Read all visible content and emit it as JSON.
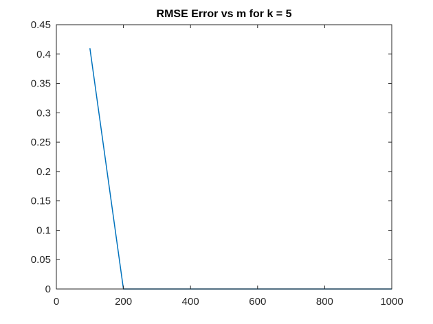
{
  "chart_data": {
    "type": "line",
    "title": "RMSE Error vs m for k = 5",
    "xlabel": "",
    "ylabel": "",
    "xlim": [
      0,
      1000
    ],
    "ylim": [
      0,
      0.45
    ],
    "x_ticks": [
      0,
      200,
      400,
      600,
      800,
      1000
    ],
    "y_ticks": [
      0,
      0.05,
      0.1,
      0.15,
      0.2,
      0.25,
      0.3,
      0.35,
      0.4,
      0.45
    ],
    "x_tick_labels": [
      "0",
      "200",
      "400",
      "600",
      "800",
      "1000"
    ],
    "y_tick_labels": [
      "0",
      "0.05",
      "0.1",
      "0.15",
      "0.2",
      "0.25",
      "0.3",
      "0.35",
      "0.4",
      "0.45"
    ],
    "grid": false,
    "box": true,
    "series": [
      {
        "color": "#0072BD",
        "x": [
          100,
          200,
          300,
          400,
          500,
          600,
          700,
          800,
          900,
          1000
        ],
        "y": [
          0.41,
          0,
          0,
          0,
          0,
          0,
          0,
          0,
          0,
          0
        ]
      }
    ]
  }
}
